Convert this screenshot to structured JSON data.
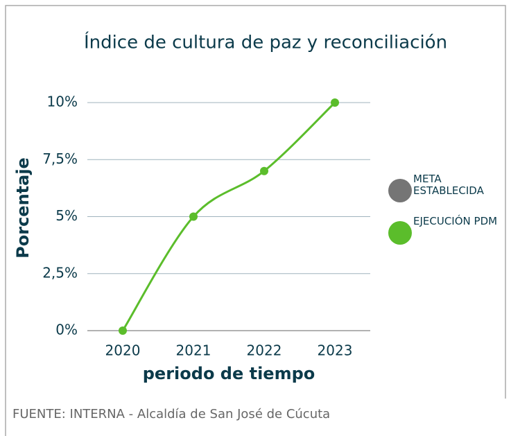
{
  "chart_data": {
    "type": "line",
    "title": "Índice de cultura de paz y reconciliación",
    "x_label": "periodo de tiempo",
    "y_label": "Porcentaje",
    "categories": [
      "2020",
      "2021",
      "2022",
      "2023"
    ],
    "series": [
      {
        "name": "META ESTABLECIDA",
        "color": "#757575",
        "values": [
          null,
          null,
          null,
          null
        ]
      },
      {
        "name": "EJECUCIÓN PDM",
        "color": "#5bbd2b",
        "values": [
          0,
          5,
          7,
          10
        ]
      }
    ],
    "ylim": [
      0,
      10
    ],
    "yticks": [
      {
        "value": 0,
        "label": "0%"
      },
      {
        "value": 2.5,
        "label": "2,5%"
      },
      {
        "value": 5,
        "label": "5%"
      },
      {
        "value": 7.5,
        "label": "7,5%"
      },
      {
        "value": 10,
        "label": "10%"
      }
    ],
    "grid": true,
    "legend": "right",
    "source": "FUENTE: INTERNA - Alcaldía de San José de Cúcuta"
  }
}
